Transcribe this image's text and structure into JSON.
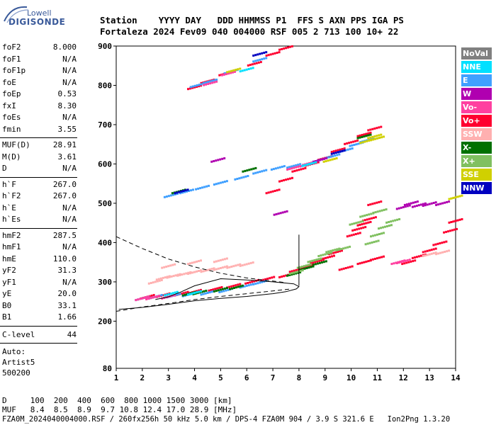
{
  "logo": {
    "top": "Lowell",
    "bottom": "DIGISONDE"
  },
  "header": {
    "line1": "Station    YYYY DAY   DDD HHMMSS P1  FFS S AXN PPS IGA PS",
    "line2": "Fortaleza 2024 Fev09 040 004000 RSF 005 2 713 100 10+ 22"
  },
  "params_group1": [
    {
      "key": "foF2",
      "value": "8.000"
    },
    {
      "key": "foF1",
      "value": "N/A"
    },
    {
      "key": "foF1p",
      "value": "N/A"
    },
    {
      "key": "foE",
      "value": "N/A"
    },
    {
      "key": "foEp",
      "value": "0.53"
    },
    {
      "key": "fxI",
      "value": "8.30"
    },
    {
      "key": "foEs",
      "value": "N/A"
    },
    {
      "key": "fmin",
      "value": "3.55"
    }
  ],
  "params_group2": [
    {
      "key": "MUF(D)",
      "value": "28.91"
    },
    {
      "key": "M(D)",
      "value": "3.61"
    },
    {
      "key": "D",
      "value": "N/A"
    }
  ],
  "params_group3": [
    {
      "key": "h`F",
      "value": "267.0"
    },
    {
      "key": "h`F2",
      "value": "267.0"
    },
    {
      "key": "h`E",
      "value": "N/A"
    },
    {
      "key": "h`Es",
      "value": "N/A"
    }
  ],
  "params_group4": [
    {
      "key": "hmF2",
      "value": "287.5"
    },
    {
      "key": "hmF1",
      "value": "N/A"
    },
    {
      "key": "hmE",
      "value": "110.0"
    },
    {
      "key": "yF2",
      "value": "31.3"
    },
    {
      "key": "yF1",
      "value": "N/A"
    },
    {
      "key": "yE",
      "value": "20.0"
    },
    {
      "key": "B0",
      "value": "33.1"
    },
    {
      "key": "B1",
      "value": "1.66"
    }
  ],
  "clevel": {
    "key": "C-level",
    "value": "44"
  },
  "auto": {
    "line1": "Auto:",
    "line2": "Artist5",
    "line3": "500200"
  },
  "legend": [
    {
      "label": "NoVal",
      "color": "#808080"
    },
    {
      "label": "NNE",
      "color": "#00e0ff"
    },
    {
      "label": "E",
      "color": "#40a0ff"
    },
    {
      "label": "W",
      "color": "#b000b0"
    },
    {
      "label": "Vo-",
      "color": "#ff40a0"
    },
    {
      "label": "Vo+",
      "color": "#ff0030"
    },
    {
      "label": "SSW",
      "color": "#ffb0b0"
    },
    {
      "label": "X-",
      "color": "#007000"
    },
    {
      "label": "X+",
      "color": "#80c060"
    },
    {
      "label": "SSE",
      "color": "#d0d000"
    },
    {
      "label": "NNW",
      "color": "#0000c0"
    }
  ],
  "bottom": {
    "d_line": "D     100  200  400  600  800 1000 1500 3000 [km]",
    "muf_line": "MUF   8.4  8.5  8.9  9.7 10.8 12.4 17.0 28.9 [MHz]",
    "footer": "FZA0M_2024040004000.RSF / 260fx256h 50 kHz 5.0 km / DPS-4 FZA0M 904 / 3.9 S 321.6 E   Ion2Png 1.3.20"
  },
  "chart_data": {
    "type": "scatter",
    "title": "",
    "xlabel": "",
    "ylabel": "",
    "xlim": [
      1,
      14
    ],
    "ylim": [
      80,
      900
    ],
    "x_ticks": [
      1,
      2,
      3,
      4,
      5,
      6,
      7,
      8,
      9,
      10,
      11,
      12,
      13,
      14
    ],
    "y_ticks": [
      200,
      300,
      400,
      500,
      600,
      700,
      800,
      900
    ],
    "y_tick_bottom_label": "80",
    "grid": false,
    "legend_position": "right",
    "series": [
      {
        "name": "Vo+",
        "color": "#ff0030",
        "points": [
          [
            2.2,
            262
          ],
          [
            2.8,
            266
          ],
          [
            3.5,
            270
          ],
          [
            4.0,
            275
          ],
          [
            4.8,
            282
          ],
          [
            5.5,
            290
          ],
          [
            6.2,
            300
          ],
          [
            6.8,
            308
          ],
          [
            7.5,
            316
          ],
          [
            7.9,
            330
          ],
          [
            8.3,
            340
          ],
          [
            8.7,
            352
          ],
          [
            9.1,
            362
          ],
          [
            9.4,
            375
          ],
          [
            7.0,
            530
          ],
          [
            7.5,
            560
          ],
          [
            8.0,
            585
          ],
          [
            8.5,
            600
          ],
          [
            9.0,
            615
          ],
          [
            9.5,
            635
          ],
          [
            10.0,
            655
          ],
          [
            10.5,
            675
          ],
          [
            10.9,
            690
          ],
          [
            4.0,
            795
          ],
          [
            4.5,
            810
          ],
          [
            5.2,
            830
          ],
          [
            6.3,
            855
          ],
          [
            7.0,
            880
          ],
          [
            7.5,
            895
          ],
          [
            10.1,
            420
          ],
          [
            10.3,
            435
          ],
          [
            10.5,
            448
          ],
          [
            10.7,
            460
          ],
          [
            10.9,
            500
          ],
          [
            12.2,
            350
          ],
          [
            12.6,
            365
          ],
          [
            13.0,
            380
          ],
          [
            13.4,
            398
          ],
          [
            13.8,
            430
          ],
          [
            14.0,
            455
          ],
          [
            9.8,
            335
          ],
          [
            10.5,
            350
          ],
          [
            11.0,
            360
          ]
        ]
      },
      {
        "name": "E",
        "color": "#40a0ff",
        "points": [
          [
            2.0,
            258
          ],
          [
            2.5,
            262
          ],
          [
            3.2,
            265
          ],
          [
            3.8,
            268
          ],
          [
            4.5,
            272
          ],
          [
            5.2,
            278
          ],
          [
            6.0,
            290
          ],
          [
            6.5,
            298
          ],
          [
            3.1,
            520
          ],
          [
            3.7,
            530
          ],
          [
            4.3,
            540
          ],
          [
            5.0,
            552
          ],
          [
            5.8,
            565
          ],
          [
            6.5,
            580
          ],
          [
            7.2,
            590
          ],
          [
            7.8,
            595
          ],
          [
            8.3,
            598
          ],
          [
            8.8,
            610
          ],
          [
            9.3,
            620
          ],
          [
            9.8,
            635
          ],
          [
            10.2,
            650
          ],
          [
            10.6,
            660
          ],
          [
            4.1,
            800
          ],
          [
            4.6,
            810
          ],
          [
            5.4,
            835
          ],
          [
            6.5,
            865
          ]
        ]
      },
      {
        "name": "X-",
        "color": "#007000",
        "points": [
          [
            3.8,
            270
          ],
          [
            4.2,
            273
          ],
          [
            5.0,
            280
          ],
          [
            5.6,
            286
          ],
          [
            7.8,
            320
          ],
          [
            8.3,
            335
          ],
          [
            8.8,
            348
          ],
          [
            10.5,
            670
          ],
          [
            3.4,
            530
          ],
          [
            6.1,
            585
          ]
        ]
      },
      {
        "name": "X+",
        "color": "#80c060",
        "points": [
          [
            7.9,
            325
          ],
          [
            8.2,
            340
          ],
          [
            8.6,
            355
          ],
          [
            9.0,
            370
          ],
          [
            9.3,
            380
          ],
          [
            9.7,
            385
          ],
          [
            10.8,
            400
          ],
          [
            11.0,
            420
          ],
          [
            11.3,
            440
          ],
          [
            11.6,
            455
          ],
          [
            10.2,
            450
          ],
          [
            10.6,
            470
          ],
          [
            11.1,
            480
          ]
        ]
      },
      {
        "name": "SSW",
        "color": "#ffb0b0",
        "points": [
          [
            2.5,
            300
          ],
          [
            2.8,
            310
          ],
          [
            3.2,
            315
          ],
          [
            3.6,
            320
          ],
          [
            4.0,
            325
          ],
          [
            4.5,
            330
          ],
          [
            5.0,
            335
          ],
          [
            5.5,
            340
          ],
          [
            6.0,
            345
          ],
          [
            3.0,
            340
          ],
          [
            4.0,
            350
          ],
          [
            5.0,
            355
          ],
          [
            13.0,
            370
          ],
          [
            13.5,
            375
          ]
        ]
      },
      {
        "name": "Vo-",
        "color": "#ff40a0",
        "points": [
          [
            2.0,
            258
          ],
          [
            2.4,
            260
          ],
          [
            3.0,
            262
          ],
          [
            4.6,
            805
          ],
          [
            5.3,
            830
          ],
          [
            11.8,
            350
          ],
          [
            12.0,
            352
          ],
          [
            7.8,
            590
          ],
          [
            8.4,
            602
          ]
        ]
      },
      {
        "name": "W",
        "color": "#b000b0",
        "points": [
          [
            12.0,
            490
          ],
          [
            12.3,
            500
          ],
          [
            12.6,
            495
          ],
          [
            13.0,
            498
          ],
          [
            13.5,
            500
          ],
          [
            4.9,
            610
          ],
          [
            7.3,
            475
          ],
          [
            8.8,
            610
          ]
        ]
      },
      {
        "name": "SSE",
        "color": "#d0d000",
        "points": [
          [
            10.6,
            658
          ],
          [
            10.9,
            670
          ],
          [
            11.0,
            665
          ],
          [
            9.2,
            610
          ],
          [
            5.5,
            838
          ],
          [
            14.0,
            515
          ]
        ]
      },
      {
        "name": "NNE",
        "color": "#00e0ff",
        "points": [
          [
            3.1,
            270
          ],
          [
            4.0,
            272
          ],
          [
            6.0,
            840
          ],
          [
            8.4,
            600
          ]
        ]
      },
      {
        "name": "NNW",
        "color": "#0000c0",
        "points": [
          [
            6.5,
            880
          ],
          [
            3.5,
            530
          ],
          [
            9.5,
            630
          ]
        ]
      }
    ],
    "trace_solid": [
      [
        1.1,
        230
      ],
      [
        2.0,
        235
      ],
      [
        3.0,
        243
      ],
      [
        4.0,
        252
      ],
      [
        5.0,
        258
      ],
      [
        6.0,
        263
      ],
      [
        7.0,
        270
      ],
      [
        7.5,
        275
      ],
      [
        7.9,
        282
      ],
      [
        8.0,
        288
      ],
      [
        7.8,
        295
      ],
      [
        7.0,
        300
      ],
      [
        6.0,
        305
      ],
      [
        5.0,
        308
      ],
      [
        4.0,
        290
      ],
      [
        3.5,
        275
      ],
      [
        3.0,
        262
      ],
      [
        2.5,
        255
      ]
    ],
    "trace_dashed_lower": [
      [
        1.0,
        225
      ],
      [
        2.0,
        236
      ],
      [
        3.0,
        245
      ],
      [
        4.0,
        255
      ],
      [
        5.0,
        263
      ],
      [
        6.0,
        270
      ],
      [
        7.0,
        277
      ],
      [
        7.7,
        282
      ]
    ],
    "trace_dashed_upper": [
      [
        1.0,
        415
      ],
      [
        2.0,
        385
      ],
      [
        3.0,
        358
      ],
      [
        4.0,
        338
      ],
      [
        5.0,
        322
      ],
      [
        6.0,
        310
      ],
      [
        7.0,
        302
      ],
      [
        7.5,
        298
      ]
    ],
    "trace_vertical": [
      [
        8.0,
        420
      ],
      [
        8.0,
        290
      ]
    ]
  }
}
